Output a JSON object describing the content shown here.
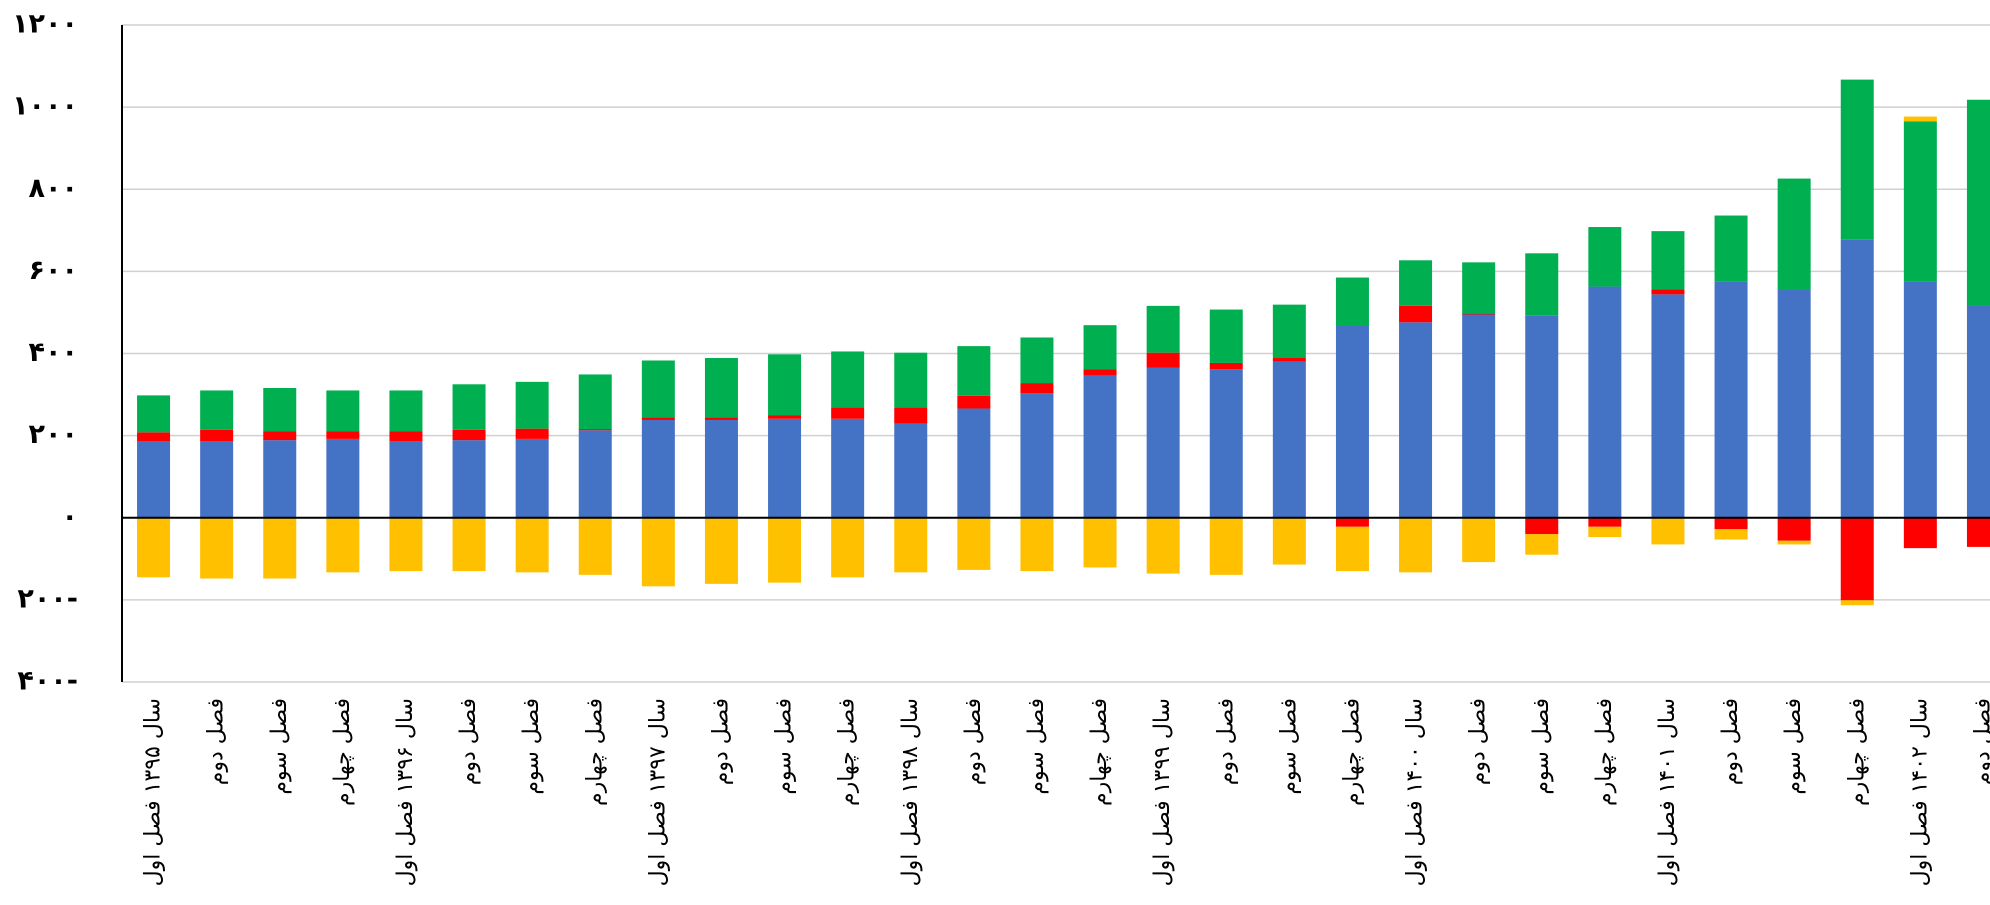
{
  "chart_data": {
    "type": "bar",
    "stacked": true,
    "grid": true,
    "categories": [
      "سال ۱۳۹۵ فصل اول",
      "فصل دوم",
      "فصل سوم",
      "فصل چهارم",
      "سال ۱۳۹۶ فصل اول",
      "فصل دوم",
      "فصل سوم",
      "فصل چهارم",
      "سال ۱۳۹۷ فصل اول",
      "فصل دوم",
      "فصل سوم",
      "فصل چهارم",
      "سال ۱۳۹۸ فصل اول",
      "فصل دوم",
      "فصل سوم",
      "فصل چهارم",
      "سال ۱۳۹۹ فصل اول",
      "فصل دوم",
      "فصل سوم",
      "فصل چهارم",
      "سال ۱۴۰۰ فصل اول",
      "فصل دوم",
      "فصل سوم",
      "فصل چهارم",
      "سال ۱۴۰۱ فصل اول",
      "فصل دوم",
      "فصل سوم",
      "فصل چهارم",
      "سال ۱۴۰۲ فصل اول",
      "فصل دوم"
    ],
    "series": [
      {
        "color": "#4472c4",
        "values": [
          186,
          186,
          189,
          192,
          186,
          189,
          192,
          213,
          238,
          238,
          241,
          241,
          229,
          266,
          303,
          346,
          365,
          362,
          380,
          467,
          476,
          495,
          492,
          563,
          544,
          575,
          557,
          677,
          575,
          517
        ]
      },
      {
        "color": "#ff0000",
        "values": [
          22,
          28,
          22,
          19,
          25,
          25,
          25,
          3,
          6,
          6,
          9,
          28,
          40,
          31,
          25,
          15,
          37,
          15,
          9,
          -22,
          40,
          3,
          -40,
          -22,
          12,
          -28,
          -56,
          -201,
          -74,
          -71
        ]
      },
      {
        "color": "#00b050",
        "values": [
          90,
          96,
          105,
          99,
          99,
          111,
          114,
          133,
          139,
          145,
          148,
          136,
          133,
          121,
          111,
          108,
          114,
          130,
          130,
          118,
          111,
          124,
          152,
          145,
          142,
          161,
          269,
          390,
          390,
          501
        ]
      },
      {
        "color": "#ffc000",
        "values": [
          -145,
          -148,
          -148,
          -133,
          -130,
          -130,
          -133,
          -139,
          -167,
          -161,
          -158,
          -145,
          -133,
          -127,
          -130,
          -121,
          -136,
          -139,
          -114,
          -108,
          -133,
          -108,
          -50,
          -25,
          -65,
          -25,
          -9,
          -12,
          12,
          0
        ]
      }
    ],
    "ylim": [
      -400,
      1200
    ],
    "yticks": [
      {
        "value": -400,
        "label": "۴۰۰-"
      },
      {
        "value": -200,
        "label": "۲۰۰-"
      },
      {
        "value": 0,
        "label": "۰"
      },
      {
        "value": 200,
        "label": "۲۰۰"
      },
      {
        "value": 400,
        "label": "۴۰۰"
      },
      {
        "value": 600,
        "label": "۶۰۰"
      },
      {
        "value": 800,
        "label": "۸۰۰"
      },
      {
        "value": 1000,
        "label": "۱۰۰۰"
      },
      {
        "value": 1200,
        "label": "۱۲۰۰"
      }
    ]
  }
}
